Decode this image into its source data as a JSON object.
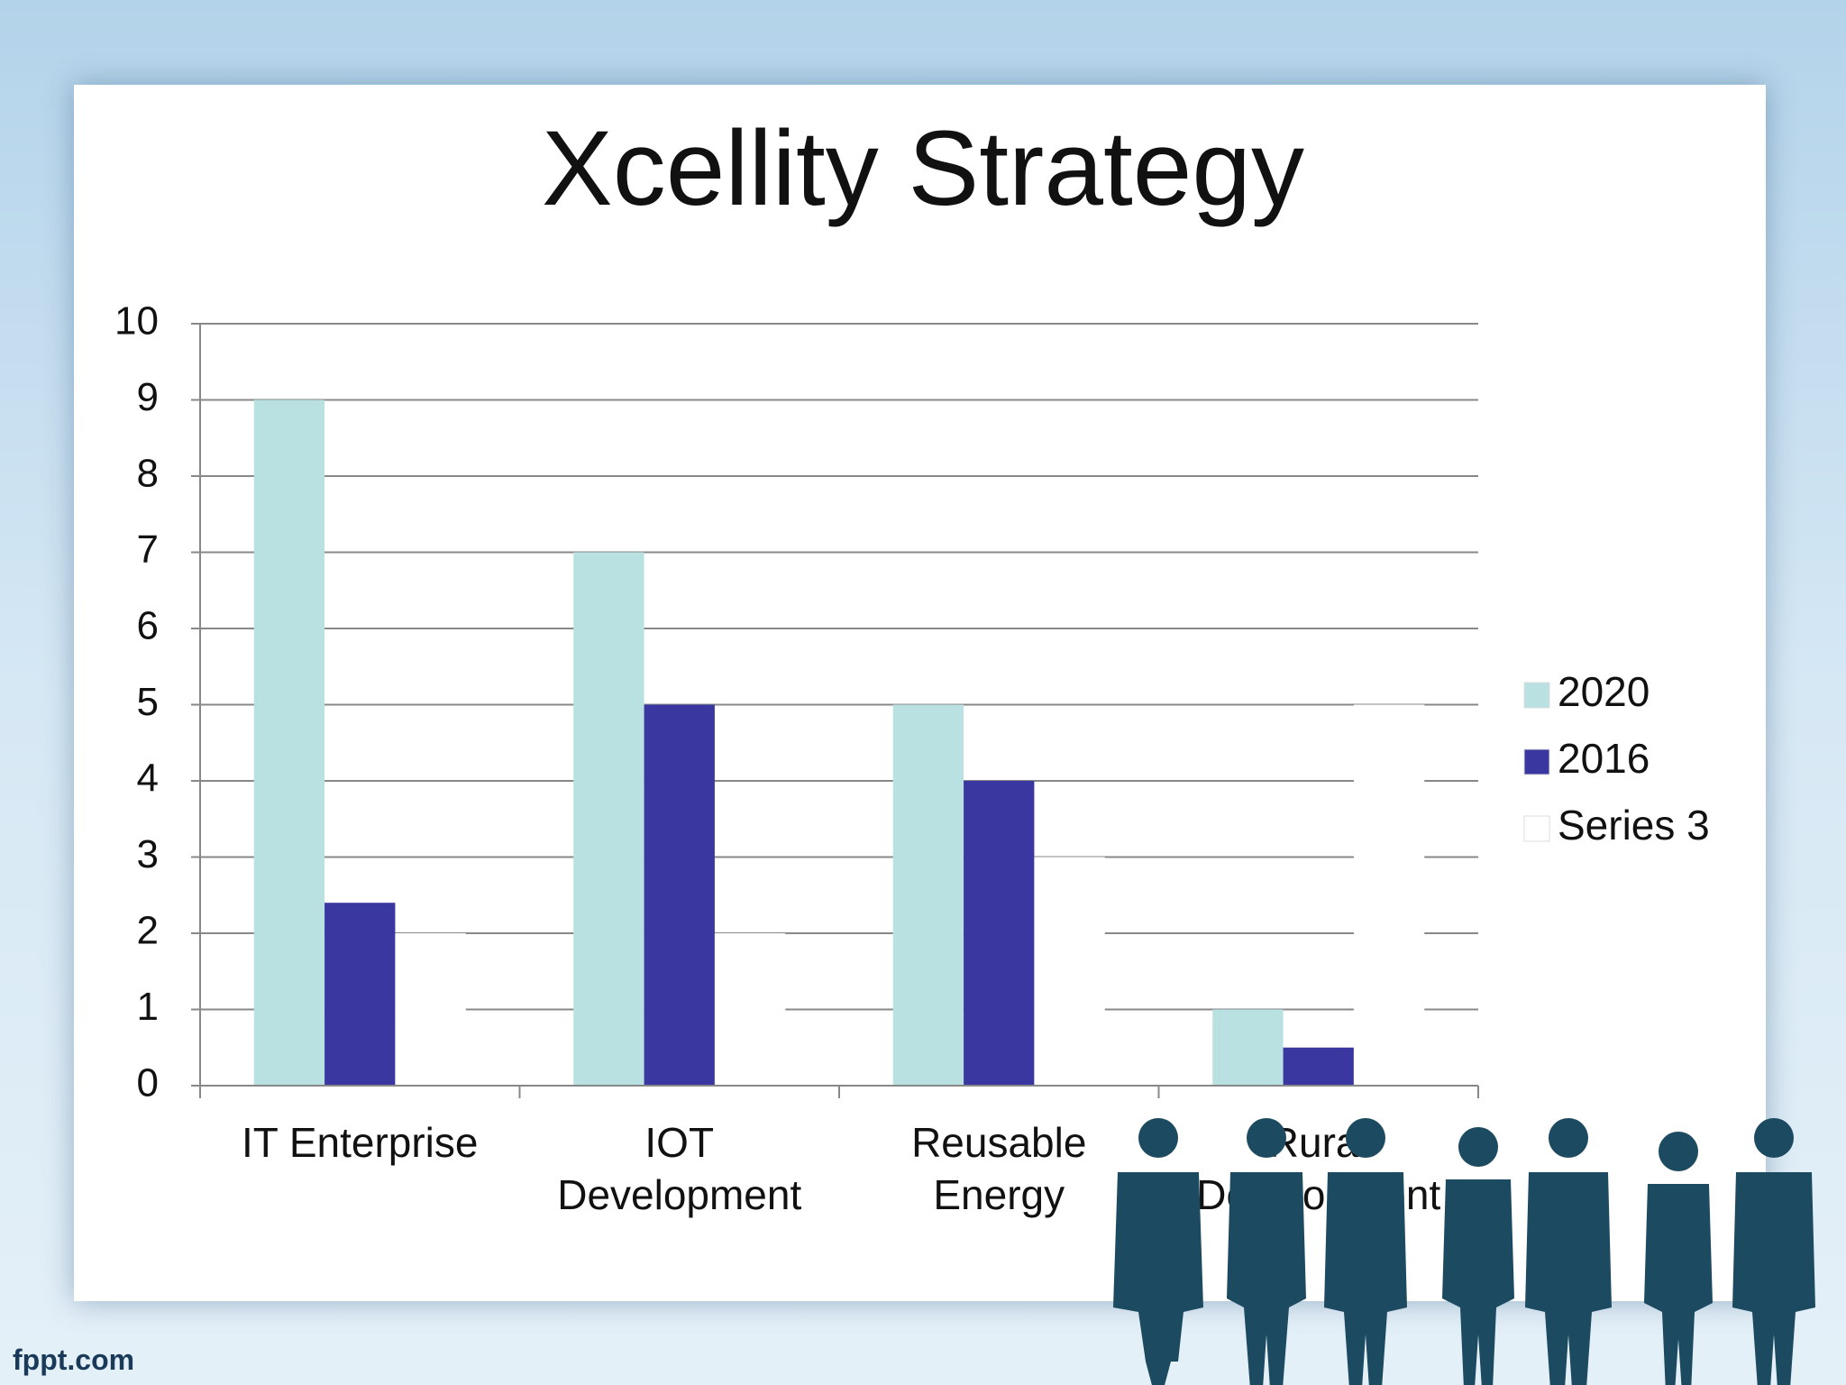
{
  "chart_data": {
    "type": "bar",
    "title": "Xcellity Strategy",
    "categories": [
      "IT Enterprise",
      "IOT Development",
      "Reusable Energy",
      "Rural Development"
    ],
    "series": [
      {
        "name": "2020",
        "color": "#b9e1e1",
        "values": [
          9,
          7,
          5,
          1
        ]
      },
      {
        "name": "2016",
        "color": "#3a37a0",
        "values": [
          2.4,
          5,
          4,
          0.5
        ]
      },
      {
        "name": "Series 3",
        "color": "#ffffff",
        "values": [
          2,
          2,
          3,
          5
        ]
      }
    ],
    "ylim": [
      0,
      10
    ],
    "yticks": [
      0,
      1,
      2,
      3,
      4,
      5,
      6,
      7,
      8,
      9,
      10
    ],
    "grid": true,
    "legend": "right"
  },
  "footer": "fppt.com"
}
